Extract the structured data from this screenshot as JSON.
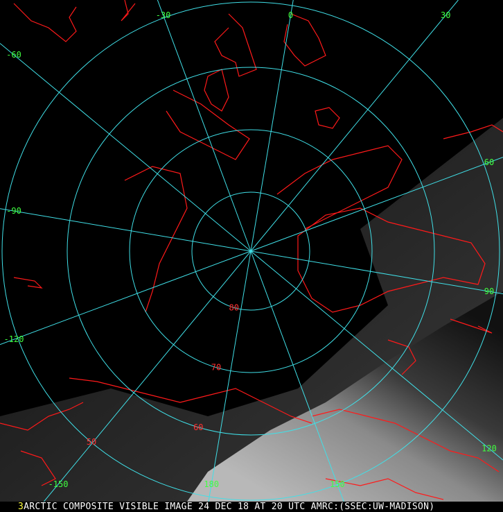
{
  "caption": {
    "channel": "3",
    "text": "ARCTIC COMPOSITE VISIBLE IMAGE 24 DEC 18 AT 20 UTC AMRC:(SSEC:UW-MADISON)"
  },
  "map": {
    "projection": "polar stereographic (north pole)",
    "grid_color": "#40e0e8",
    "coastline_color": "#ff1a1a",
    "longitude_label_color": "#40ff40",
    "latitude_label_color": "#ff3030",
    "longitudes": [
      {
        "lon": 0,
        "label": "0"
      },
      {
        "lon": 30,
        "label": "30"
      },
      {
        "lon": 60,
        "label": "60"
      },
      {
        "lon": 90,
        "label": "90"
      },
      {
        "lon": 120,
        "label": "120"
      },
      {
        "lon": 150,
        "label": "150"
      },
      {
        "lon": 180,
        "label": "180"
      },
      {
        "lon": -150,
        "label": "-150"
      },
      {
        "lon": -120,
        "label": "-120"
      },
      {
        "lon": -90,
        "label": "-90"
      },
      {
        "lon": -60,
        "label": "-60"
      },
      {
        "lon": -30,
        "label": "-30"
      }
    ],
    "latitudes": [
      {
        "lat": 80,
        "label": "80"
      },
      {
        "lat": 70,
        "label": "70"
      },
      {
        "lat": 60,
        "label": "60"
      },
      {
        "lat": 50,
        "label": "50"
      }
    ]
  }
}
